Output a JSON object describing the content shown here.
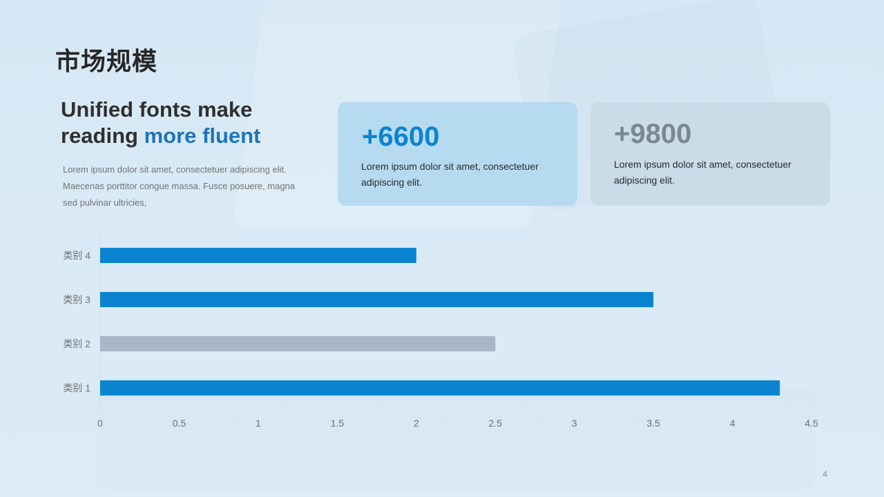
{
  "page": {
    "title": "市场规模",
    "page_number": "4"
  },
  "intro": {
    "headline_part1": "Unified fonts make reading ",
    "headline_accent": "more fluent",
    "body": "Lorem ipsum dolor sit amet, consectetuer adipiscing elit. Maecenas porttitor congue massa. Fusce posuere, magna sed pulvinar ultricies,"
  },
  "stats": [
    {
      "value": "+6600",
      "text": "Lorem ipsum dolor sit amet, consectetuer adipiscing elit."
    },
    {
      "value": "+9800",
      "text": "Lorem ipsum dolor sit amet, consectetuer adipiscing elit."
    }
  ],
  "colors": {
    "blue_accent": "#0a84d0",
    "gray_bar": "#a8b7c6",
    "card_blue": "#b6daf0",
    "card_gray": "#c9dce8",
    "headline_accent": "#1f74b9"
  },
  "chart_data": {
    "type": "bar",
    "orientation": "horizontal",
    "categories": [
      "类别 1",
      "类别 2",
      "类别 3",
      "类别 4"
    ],
    "values": [
      4.3,
      2.5,
      3.5,
      2.0
    ],
    "bar_colors": [
      "#0a84d0",
      "#a8b7c6",
      "#0a84d0",
      "#0a84d0"
    ],
    "xlim": [
      0,
      4.5
    ],
    "x_ticks": [
      "0",
      "0.5",
      "1",
      "1.5",
      "2",
      "2.5",
      "3",
      "3.5",
      "4",
      "4.5"
    ],
    "grid": false,
    "legend": "none"
  }
}
